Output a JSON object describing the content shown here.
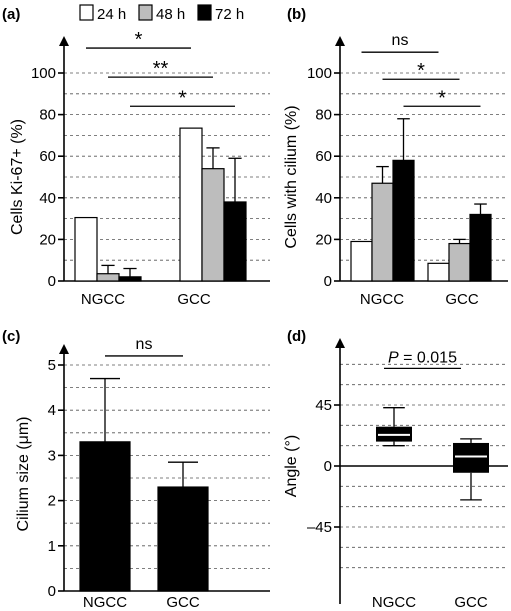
{
  "legend": [
    {
      "label": "24 h",
      "color": "#ffffff"
    },
    {
      "label": "48 h",
      "color": "#bdbdbd"
    },
    {
      "label": "72 h",
      "color": "#000000"
    }
  ],
  "chart_data": [
    {
      "panel": "(a)",
      "type": "bar",
      "ylabel": "Cells Ki-67+ (%)",
      "ylim": [
        0,
        100
      ],
      "yticks": [
        0,
        20,
        40,
        60,
        80,
        100
      ],
      "grid": true,
      "categories": [
        "NGCC",
        "GCC"
      ],
      "series": [
        {
          "name": "24 h",
          "color": "#ffffff",
          "values": [
            30.5,
            73.5
          ],
          "errors": [
            0,
            0
          ]
        },
        {
          "name": "48 h",
          "color": "#bdbdbd",
          "values": [
            3.5,
            54
          ],
          "errors": [
            4,
            10
          ]
        },
        {
          "name": "72 h",
          "color": "#000000",
          "values": [
            2,
            38
          ],
          "errors": [
            4,
            21
          ]
        }
      ],
      "annotations": [
        {
          "text": "*",
          "from": [
            0,
            0
          ],
          "to": [
            1,
            0
          ],
          "y": 112
        },
        {
          "text": "**",
          "from": [
            0,
            1
          ],
          "to": [
            1,
            1
          ],
          "y": 98
        },
        {
          "text": "*",
          "from": [
            0,
            2
          ],
          "to": [
            1,
            2
          ],
          "y": 84
        }
      ]
    },
    {
      "panel": "(b)",
      "type": "bar",
      "ylabel": "Cells with cilium (%)",
      "ylim": [
        0,
        100
      ],
      "yticks": [
        0,
        20,
        40,
        60,
        80,
        100
      ],
      "grid": true,
      "categories": [
        "NGCC",
        "GCC"
      ],
      "series": [
        {
          "name": "24 h",
          "color": "#ffffff",
          "values": [
            19,
            8.5
          ],
          "errors": [
            0,
            0
          ]
        },
        {
          "name": "48 h",
          "color": "#bdbdbd",
          "values": [
            47,
            18
          ],
          "errors": [
            8,
            2
          ]
        },
        {
          "name": "72 h",
          "color": "#000000",
          "values": [
            58,
            32
          ],
          "errors": [
            20,
            5
          ]
        }
      ],
      "annotations": [
        {
          "text": "ns",
          "from": [
            0,
            0
          ],
          "to": [
            1,
            0
          ],
          "y": 110
        },
        {
          "text": "*",
          "from": [
            0,
            1
          ],
          "to": [
            1,
            1
          ],
          "y": 97
        },
        {
          "text": "*",
          "from": [
            0,
            2
          ],
          "to": [
            1,
            2
          ],
          "y": 84
        }
      ]
    },
    {
      "panel": "(c)",
      "type": "bar",
      "ylabel": "Cilium size (μm)",
      "ylim": [
        0,
        5
      ],
      "yticks": [
        0,
        1,
        2,
        3,
        4,
        5
      ],
      "grid": true,
      "categories": [
        "NGCC",
        "GCC"
      ],
      "series": [
        {
          "name": "",
          "color": "#000000",
          "values": [
            3.3,
            2.3
          ],
          "errors": [
            1.4,
            0.55
          ]
        }
      ],
      "annotations": [
        {
          "text": "ns",
          "from": [
            0,
            0
          ],
          "to": [
            1,
            0
          ],
          "y": 5.2
        }
      ]
    },
    {
      "panel": "(d)",
      "type": "box",
      "ylabel": "Angle (°)",
      "ylim": [
        -90,
        90
      ],
      "yticks": [
        -45,
        0,
        45
      ],
      "ytick_labels": [
        "–45",
        "0",
        "45"
      ],
      "grid": true,
      "categories": [
        "NGCC",
        "GCC"
      ],
      "boxes": [
        {
          "whisker_low": 15,
          "q1": 18,
          "median": 23,
          "q3": 29,
          "whisker_high": 43
        },
        {
          "whisker_low": -25,
          "q1": -5,
          "median": 7,
          "q3": 17,
          "whisker_high": 20
        }
      ],
      "annotations": [
        {
          "text_italic": "P",
          "text_rest": " = 0.015",
          "from": 0,
          "to": 1,
          "y": 72
        }
      ]
    }
  ]
}
